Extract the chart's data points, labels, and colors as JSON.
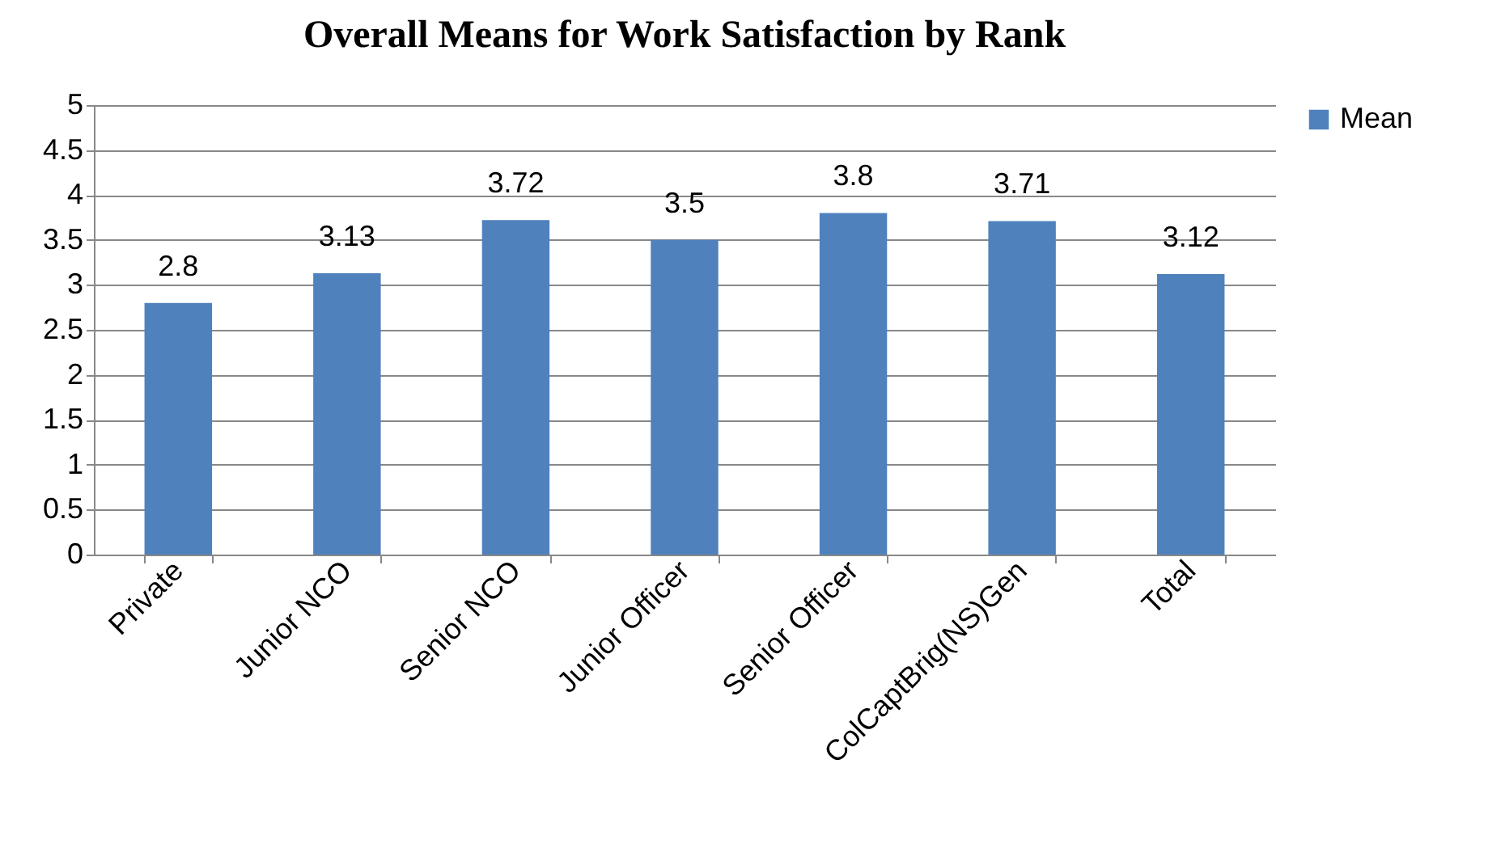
{
  "chart_data": {
    "type": "bar",
    "title": "Overall Means for Work Satisfaction by Rank",
    "categories": [
      "Private",
      "Junior NCO",
      "Senior NCO",
      "Junior Officer",
      "Senior Officer",
      "ColCaptBrig(NS)Gen",
      "Total"
    ],
    "series": [
      {
        "name": "Mean",
        "color": "#4f81bd",
        "values": [
          2.8,
          3.13,
          3.72,
          3.5,
          3.8,
          3.71,
          3.12
        ]
      }
    ],
    "ylim": [
      0,
      5
    ],
    "yticks": [
      0,
      0.5,
      1,
      1.5,
      2,
      2.5,
      3,
      3.5,
      4,
      4.5,
      5
    ],
    "grid": "y",
    "legend": "right",
    "data_labels": true
  }
}
